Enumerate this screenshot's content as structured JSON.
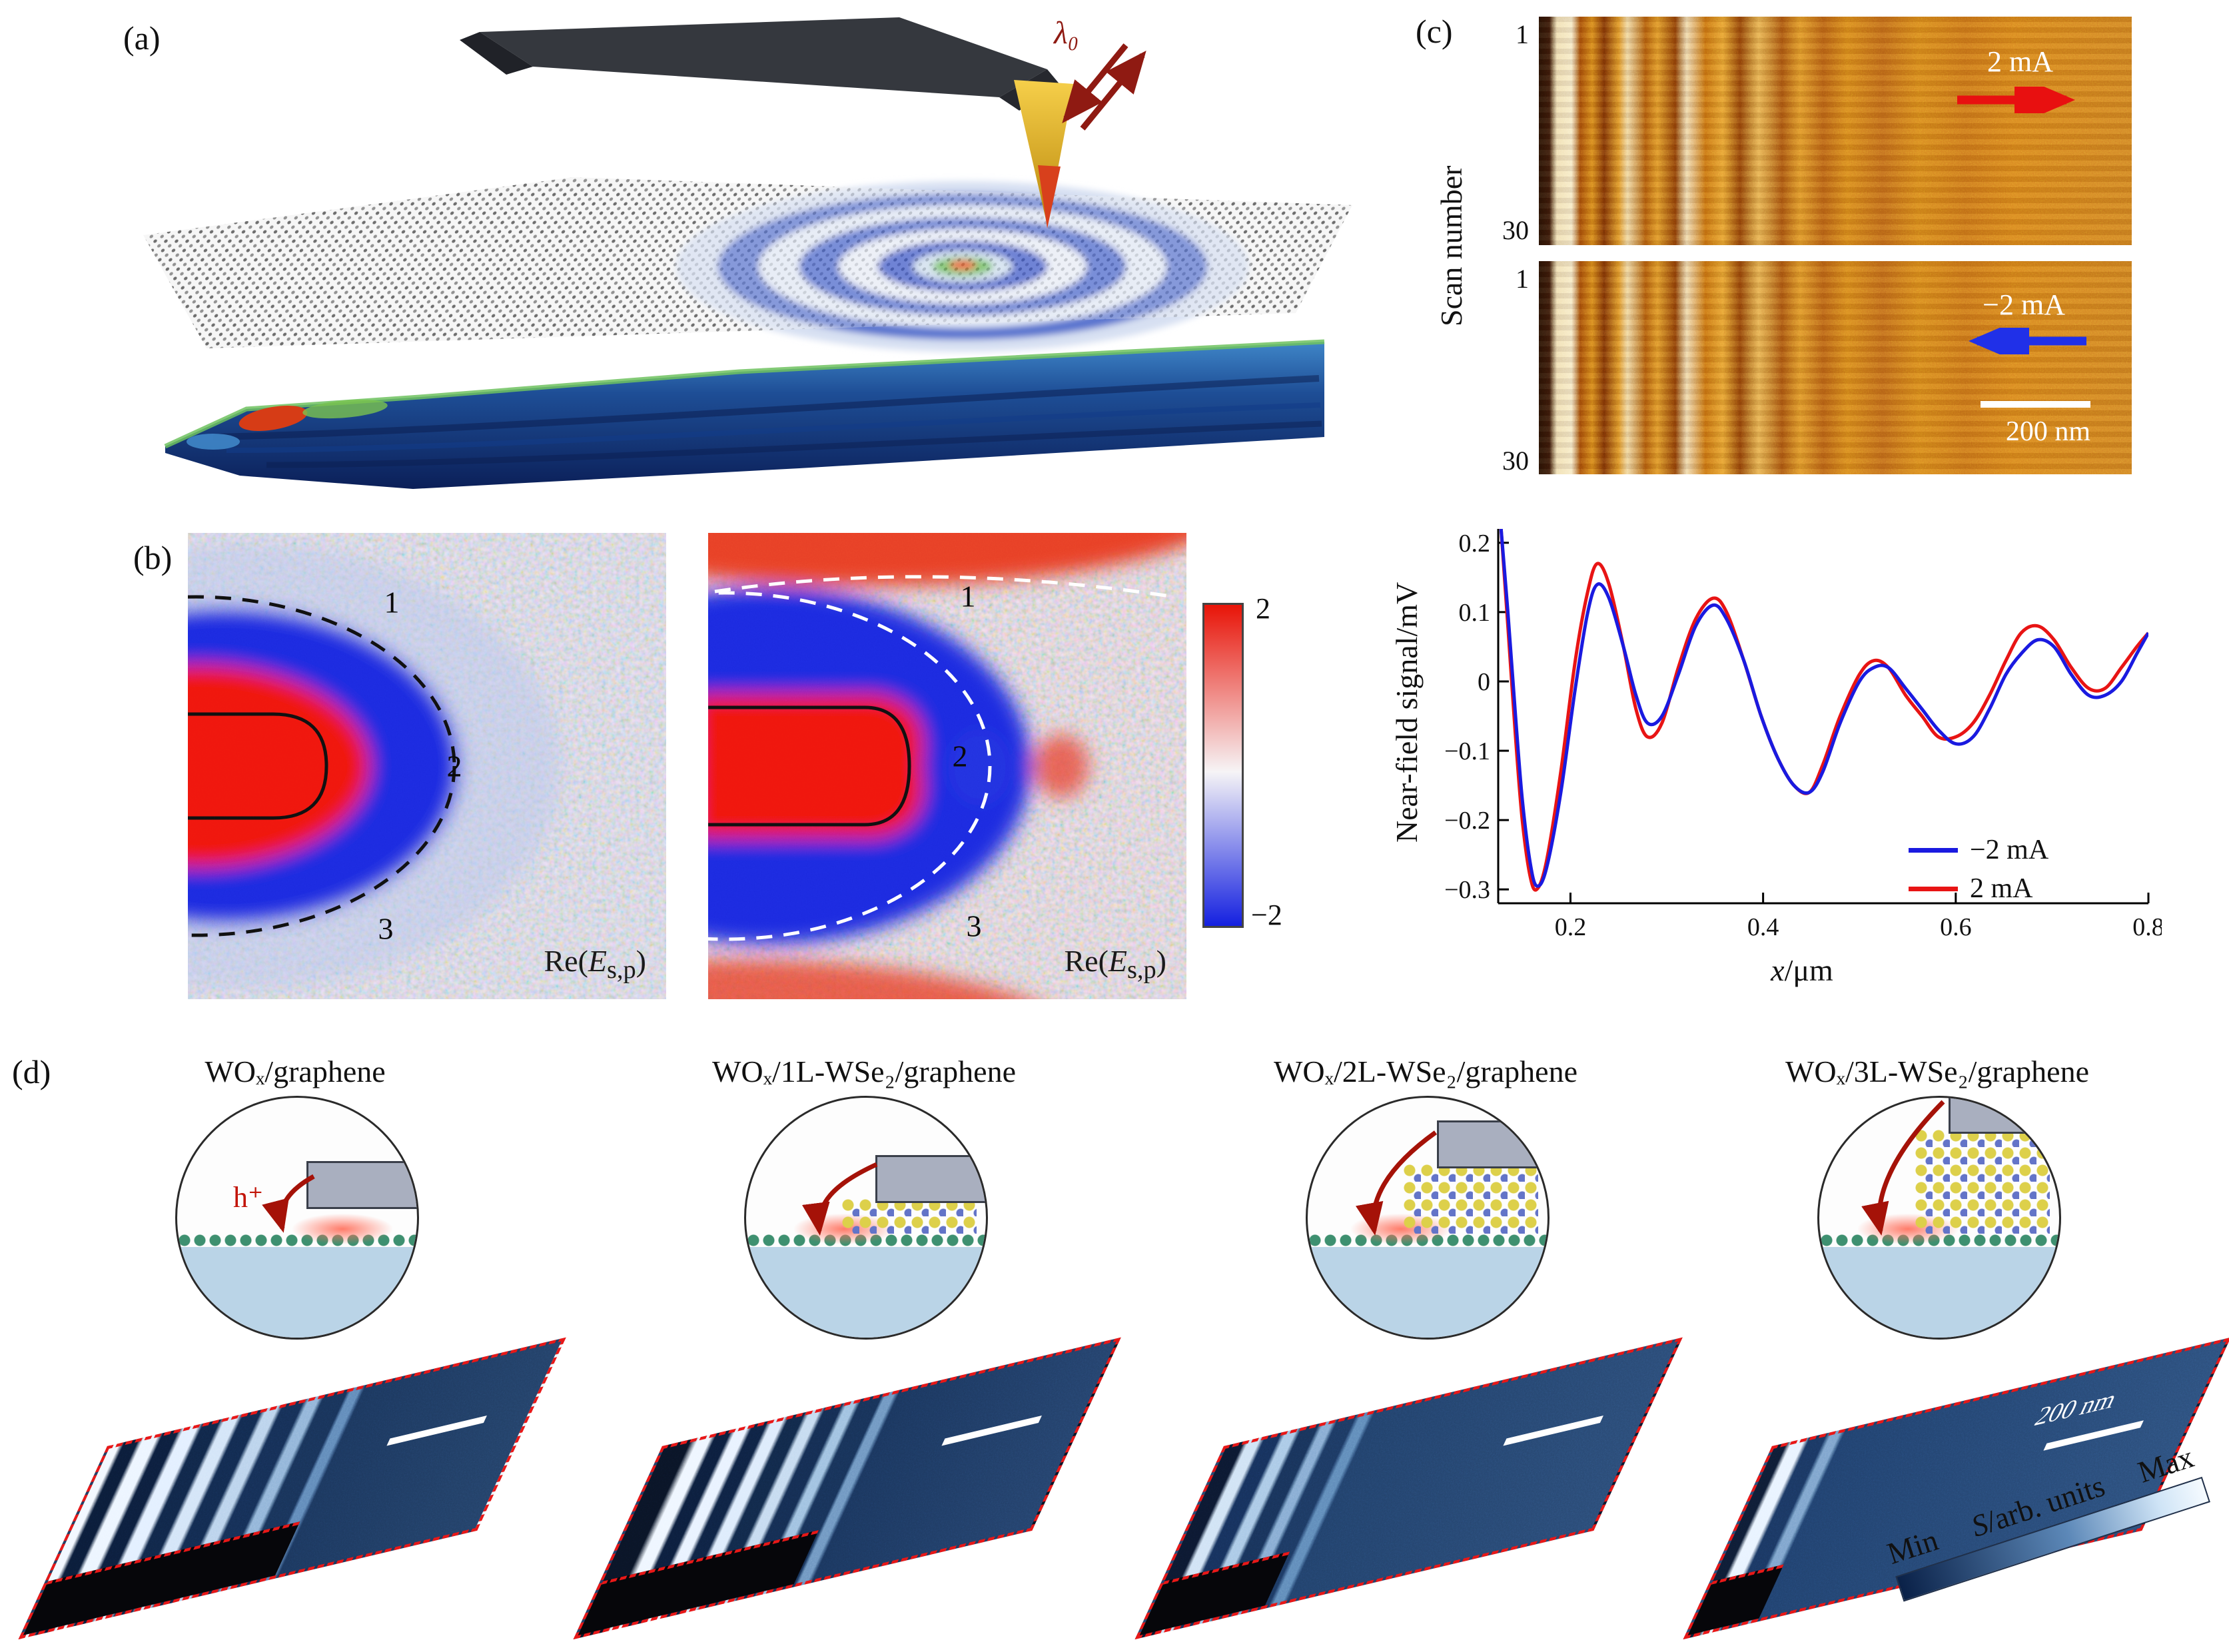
{
  "panel_a": {
    "label": "(a)",
    "wavelength_label": "λ₀"
  },
  "panel_b": {
    "label": "(b)",
    "images": [
      {
        "contour_labels": [
          "1",
          "2",
          "3"
        ],
        "caption": {
          "prefix": "Re(",
          "symbol": "E",
          "subscript": "s,p",
          "suffix": ")"
        }
      },
      {
        "contour_labels": [
          "1",
          "2",
          "3"
        ],
        "caption": {
          "prefix": "Re(",
          "symbol": "E",
          "subscript": "s,p",
          "suffix": ")"
        }
      }
    ],
    "colorbar": {
      "max_label": "2",
      "min_label": "−2"
    }
  },
  "panel_c": {
    "label": "(c)",
    "y_axis_label": "Scan number",
    "scans": [
      {
        "tick_top": "1",
        "tick_bottom": "30",
        "current_label": "2 mA",
        "arrow_direction": "right"
      },
      {
        "tick_top": "1",
        "tick_bottom": "30",
        "current_label": "−2 mA",
        "arrow_direction": "left",
        "scale_bar_label": "200 nm"
      }
    ]
  },
  "chart_data": {
    "type": "line",
    "title": "",
    "xlabel": "x/μm",
    "xlabel_symbol": "x",
    "xlabel_rest": "/μm",
    "ylabel": "Near-field signal/mV",
    "xlim": [
      0.125,
      0.8
    ],
    "ylim": [
      -0.32,
      0.22
    ],
    "xticks": [
      0.2,
      0.4,
      0.6,
      0.8
    ],
    "yticks": [
      0.2,
      0.1,
      0,
      -0.1,
      -0.2,
      -0.3
    ],
    "grid": false,
    "legend_position": "bottom-right",
    "series": [
      {
        "name": "−2 mA",
        "color": "#1a1ae0",
        "x": [
          0.128,
          0.135,
          0.143,
          0.15,
          0.158,
          0.165,
          0.175,
          0.19,
          0.205,
          0.218,
          0.228,
          0.24,
          0.255,
          0.268,
          0.28,
          0.295,
          0.312,
          0.33,
          0.348,
          0.362,
          0.38,
          0.398,
          0.415,
          0.432,
          0.448,
          0.462,
          0.48,
          0.5,
          0.515,
          0.53,
          0.548,
          0.565,
          0.582,
          0.6,
          0.618,
          0.635,
          0.652,
          0.668,
          0.685,
          0.702,
          0.72,
          0.738,
          0.755,
          0.772,
          0.788,
          0.8
        ],
        "y": [
          0.22,
          0.1,
          -0.05,
          -0.17,
          -0.26,
          -0.295,
          -0.27,
          -0.16,
          -0.01,
          0.1,
          0.14,
          0.12,
          0.05,
          -0.02,
          -0.06,
          -0.05,
          0.01,
          0.08,
          0.11,
          0.09,
          0.03,
          -0.05,
          -0.11,
          -0.15,
          -0.16,
          -0.13,
          -0.06,
          0.0,
          0.02,
          0.02,
          -0.01,
          -0.04,
          -0.07,
          -0.09,
          -0.08,
          -0.04,
          0.01,
          0.04,
          0.06,
          0.05,
          0.01,
          -0.02,
          -0.02,
          0.0,
          0.04,
          0.07
        ]
      },
      {
        "name": "2 mA",
        "color": "#e81414",
        "x": [
          0.128,
          0.135,
          0.143,
          0.15,
          0.158,
          0.165,
          0.175,
          0.19,
          0.205,
          0.218,
          0.228,
          0.24,
          0.255,
          0.268,
          0.28,
          0.295,
          0.312,
          0.33,
          0.348,
          0.362,
          0.38,
          0.398,
          0.415,
          0.432,
          0.448,
          0.462,
          0.48,
          0.5,
          0.515,
          0.53,
          0.548,
          0.565,
          0.582,
          0.6,
          0.618,
          0.635,
          0.652,
          0.668,
          0.685,
          0.702,
          0.72,
          0.738,
          0.755,
          0.772,
          0.788,
          0.8
        ],
        "y": [
          0.22,
          0.08,
          -0.08,
          -0.2,
          -0.28,
          -0.3,
          -0.26,
          -0.13,
          0.03,
          0.13,
          0.17,
          0.14,
          0.05,
          -0.04,
          -0.08,
          -0.06,
          0.02,
          0.09,
          0.12,
          0.1,
          0.03,
          -0.05,
          -0.11,
          -0.15,
          -0.16,
          -0.12,
          -0.05,
          0.01,
          0.03,
          0.02,
          -0.02,
          -0.05,
          -0.08,
          -0.08,
          -0.06,
          -0.02,
          0.03,
          0.07,
          0.08,
          0.06,
          0.02,
          -0.01,
          -0.01,
          0.02,
          0.05,
          0.07
        ]
      }
    ]
  },
  "panel_d": {
    "label": "(d)",
    "columns": [
      {
        "title": "WOₓ/graphene",
        "wse2_layers": 0,
        "hole_label": "h⁺"
      },
      {
        "title": "WOₓ/1L-WSe₂/graphene",
        "wse2_layers": 1
      },
      {
        "title": "WOₓ/2L-WSe₂/graphene",
        "wse2_layers": 2
      },
      {
        "title": "WOₓ/3L-WSe₂/graphene",
        "wse2_layers": 3,
        "scale_bar_label": "200 nm"
      }
    ],
    "colorbar": {
      "min_label": "Min",
      "axis_symbol": "S",
      "axis_rest": "/arb. units",
      "max_label": "Max"
    }
  }
}
